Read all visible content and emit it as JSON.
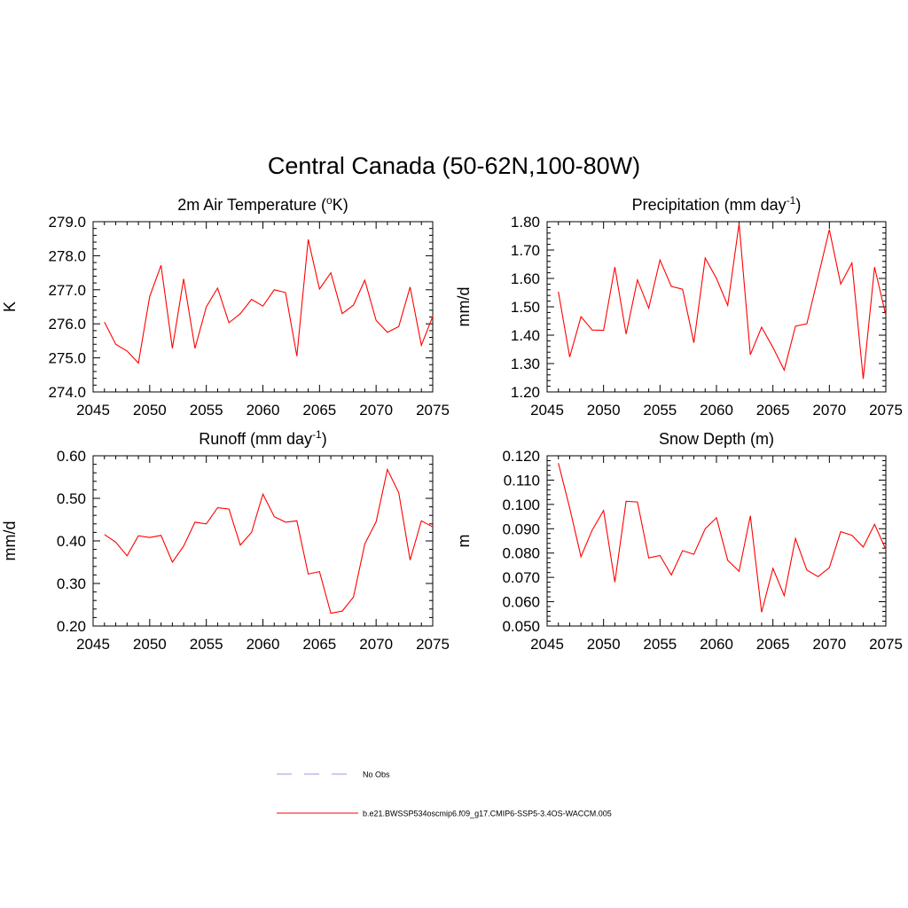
{
  "title": "Central Canada (50-62N,100-80W)",
  "legend": {
    "items": [
      {
        "label": "No Obs",
        "style": "dashed",
        "color": "#9999dd"
      },
      {
        "label": "b.e21.BWSSP534oscmip6.f09_g17.CMIP6-SSP5-3.4OS-WACCM.005",
        "style": "solid",
        "color": "#ff0000"
      }
    ]
  },
  "colors": {
    "series": "#ff0000",
    "axis": "#000000"
  },
  "chart_data": [
    {
      "type": "line",
      "title_main": "2m Air Temperature (",
      "title_sup": "o",
      "title_end": "K)",
      "ylabel": "K",
      "xlim": [
        2045,
        2075
      ],
      "ylim": [
        274.0,
        279.0
      ],
      "xticks": [
        2045,
        2050,
        2055,
        2060,
        2065,
        2070,
        2075
      ],
      "xticklabels": [
        "2045",
        "2050",
        "2055",
        "2060",
        "2065",
        "2070",
        "2075"
      ],
      "yticks": [
        274.0,
        275.0,
        276.0,
        277.0,
        278.0,
        279.0
      ],
      "yticklabels": [
        "274.0",
        "275.0",
        "276.0",
        "277.0",
        "278.0",
        "279.0"
      ],
      "x": [
        2046,
        2047,
        2048,
        2049,
        2050,
        2051,
        2052,
        2053,
        2054,
        2055,
        2056,
        2057,
        2058,
        2059,
        2060,
        2061,
        2062,
        2063,
        2064,
        2065,
        2066,
        2067,
        2068,
        2069,
        2070,
        2071,
        2072,
        2073,
        2074,
        2075
      ],
      "values": [
        276.05,
        275.4,
        275.2,
        274.85,
        276.8,
        277.72,
        275.28,
        277.32,
        275.28,
        276.5,
        277.05,
        276.03,
        276.3,
        276.72,
        276.52,
        277.0,
        276.92,
        275.05,
        278.48,
        277.02,
        277.5,
        276.3,
        276.55,
        277.28,
        276.1,
        275.75,
        275.92,
        277.08,
        275.37,
        276.22
      ]
    },
    {
      "type": "line",
      "title_main": "Precipitation (mm day",
      "title_sup": "-1",
      "title_end": ")",
      "ylabel": "mm/d",
      "xlim": [
        2045,
        2075
      ],
      "ylim": [
        1.2,
        1.8
      ],
      "xticks": [
        2045,
        2050,
        2055,
        2060,
        2065,
        2070,
        2075
      ],
      "xticklabels": [
        "2045",
        "2050",
        "2055",
        "2060",
        "2065",
        "2070",
        "2075"
      ],
      "yticks": [
        1.2,
        1.3,
        1.4,
        1.5,
        1.6,
        1.7,
        1.8
      ],
      "yticklabels": [
        "1.20",
        "1.30",
        "1.40",
        "1.50",
        "1.60",
        "1.70",
        "1.80"
      ],
      "x": [
        2046,
        2047,
        2048,
        2049,
        2050,
        2051,
        2052,
        2053,
        2054,
        2055,
        2056,
        2057,
        2058,
        2059,
        2060,
        2061,
        2062,
        2063,
        2064,
        2065,
        2066,
        2067,
        2068,
        2069,
        2070,
        2071,
        2072,
        2073,
        2074,
        2075
      ],
      "values": [
        1.553,
        1.323,
        1.465,
        1.418,
        1.417,
        1.64,
        1.404,
        1.595,
        1.495,
        1.665,
        1.572,
        1.562,
        1.373,
        1.672,
        1.6,
        1.505,
        1.793,
        1.331,
        1.428,
        1.357,
        1.277,
        1.432,
        1.44,
        1.605,
        1.772,
        1.58,
        1.655,
        1.246,
        1.64,
        1.47
      ]
    },
    {
      "type": "line",
      "title_main": "Runoff (mm day",
      "title_sup": "-1",
      "title_end": ")",
      "ylabel": "mm/d",
      "xlim": [
        2045,
        2075
      ],
      "ylim": [
        0.2,
        0.6
      ],
      "xticks": [
        2045,
        2050,
        2055,
        2060,
        2065,
        2070,
        2075
      ],
      "xticklabels": [
        "2045",
        "2050",
        "2055",
        "2060",
        "2065",
        "2070",
        "2075"
      ],
      "yticks": [
        0.2,
        0.3,
        0.4,
        0.5,
        0.6
      ],
      "yticklabels": [
        "0.20",
        "0.30",
        "0.40",
        "0.50",
        "0.60"
      ],
      "x": [
        2046,
        2047,
        2048,
        2049,
        2050,
        2051,
        2052,
        2053,
        2054,
        2055,
        2056,
        2057,
        2058,
        2059,
        2060,
        2061,
        2062,
        2063,
        2064,
        2065,
        2066,
        2067,
        2068,
        2069,
        2070,
        2071,
        2072,
        2073,
        2074,
        2075
      ],
      "values": [
        0.415,
        0.397,
        0.365,
        0.412,
        0.408,
        0.413,
        0.35,
        0.388,
        0.444,
        0.44,
        0.478,
        0.475,
        0.39,
        0.42,
        0.51,
        0.457,
        0.444,
        0.447,
        0.322,
        0.328,
        0.23,
        0.235,
        0.268,
        0.393,
        0.445,
        0.568,
        0.513,
        0.355,
        0.447,
        0.433
      ]
    },
    {
      "type": "line",
      "title_main": "Snow Depth (m)",
      "title_sup": "",
      "title_end": "",
      "ylabel": "m",
      "xlim": [
        2045,
        2075
      ],
      "ylim": [
        0.05,
        0.12
      ],
      "xticks": [
        2045,
        2050,
        2055,
        2060,
        2065,
        2070,
        2075
      ],
      "xticklabels": [
        "2045",
        "2050",
        "2055",
        "2060",
        "2065",
        "2070",
        "2075"
      ],
      "yticks": [
        0.05,
        0.06,
        0.07,
        0.08,
        0.09,
        0.1,
        0.11,
        0.12
      ],
      "yticklabels": [
        "0.050",
        "0.060",
        "0.070",
        "0.080",
        "0.090",
        "0.100",
        "0.110",
        "0.120"
      ],
      "x": [
        2046,
        2047,
        2048,
        2049,
        2050,
        2051,
        2052,
        2053,
        2054,
        2055,
        2056,
        2057,
        2058,
        2059,
        2060,
        2061,
        2062,
        2063,
        2064,
        2065,
        2066,
        2067,
        2068,
        2069,
        2070,
        2071,
        2072,
        2073,
        2074,
        2075
      ],
      "values": [
        0.117,
        0.0985,
        0.0785,
        0.0895,
        0.0975,
        0.068,
        0.1013,
        0.101,
        0.078,
        0.079,
        0.071,
        0.081,
        0.0795,
        0.09,
        0.0945,
        0.077,
        0.0725,
        0.0953,
        0.0557,
        0.0737,
        0.0625,
        0.086,
        0.073,
        0.0703,
        0.074,
        0.0888,
        0.0873,
        0.0825,
        0.0918,
        0.0815
      ]
    }
  ]
}
